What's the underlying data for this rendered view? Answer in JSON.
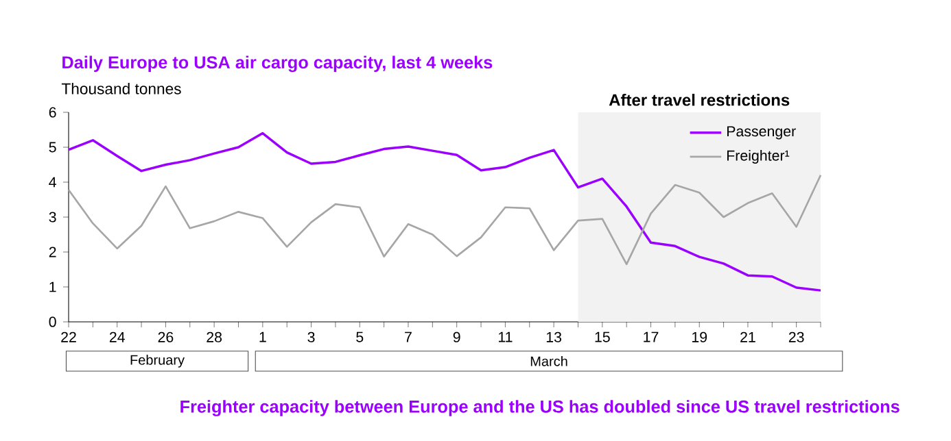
{
  "chart_data": {
    "type": "line",
    "title": "Daily Europe to USA air cargo capacity, last 4 weeks",
    "ylabel": "Thousand  tonnes",
    "categories": [
      "22",
      null,
      "24",
      null,
      "26",
      null,
      "28",
      null,
      "1",
      null,
      "3",
      null,
      "5",
      null,
      "7",
      null,
      "9",
      null,
      "11",
      null,
      "13",
      null,
      "15",
      null,
      "17",
      null,
      "19",
      null,
      "21",
      null,
      "23",
      null
    ],
    "series": [
      {
        "name": "Passenger",
        "color": "#9b00ff",
        "values": [
          4.93,
          5.2,
          4.75,
          4.32,
          4.5,
          4.63,
          4.82,
          5.0,
          5.4,
          4.85,
          4.53,
          4.58,
          4.77,
          4.95,
          5.02,
          4.9,
          4.78,
          4.34,
          4.43,
          4.7,
          4.92,
          3.85,
          4.1,
          3.3,
          2.27,
          2.17,
          1.86,
          1.67,
          1.33,
          1.3,
          0.98,
          0.9
        ]
      },
      {
        "name": "Freighter¹",
        "color": "#a6a6a6",
        "values": [
          3.78,
          2.82,
          2.1,
          2.75,
          3.88,
          2.68,
          2.88,
          3.15,
          2.97,
          2.15,
          2.85,
          3.37,
          3.28,
          1.87,
          2.8,
          2.5,
          1.88,
          2.42,
          3.28,
          3.25,
          2.05,
          2.9,
          2.95,
          1.65,
          3.1,
          3.92,
          3.7,
          3.0,
          3.4,
          3.68,
          2.72,
          4.2
        ]
      }
    ],
    "ylim": [
      0,
      6
    ],
    "yticks": [
      0,
      1,
      2,
      3,
      4,
      5,
      6
    ],
    "grid": false,
    "legend": "top right",
    "marker": "none",
    "line_style": "solid",
    "annotations": [
      "February",
      "March",
      "Freighter capacity between Europe and the US has doubled since US travel restrictions",
      "After travel restrictions"
    ]
  }
}
